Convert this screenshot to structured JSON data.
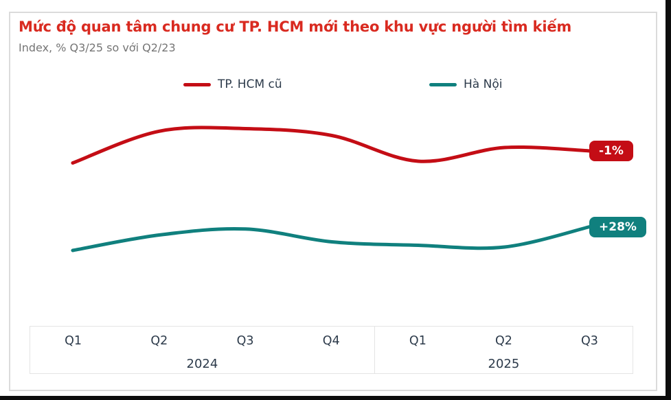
{
  "page": {
    "title": "Mức độ quan tâm chung cư TP. HCM mới theo khu vực người tìm kiếm",
    "subtitle": "Index, % Q3/25 so với Q2/23"
  },
  "legend": {
    "items": [
      {
        "label": "TP. HCM cũ",
        "color": "#c40d15"
      },
      {
        "label": "Hà Nội",
        "color": "#10807e"
      }
    ]
  },
  "chart_data": {
    "type": "line",
    "title": "Mức độ quan tâm chung cư TP. HCM mới theo khu vực người tìm kiếm",
    "subtitle": "Index, % Q3/25 so với Q2/23",
    "categories": [
      "Q1 2024",
      "Q2 2024",
      "Q3 2024",
      "Q4 2024",
      "Q1 2025",
      "Q2 2025",
      "Q3 2025"
    ],
    "x_axis": {
      "groups": [
        {
          "year": "2024",
          "quarters": [
            "Q1",
            "Q2",
            "Q3",
            "Q4"
          ]
        },
        {
          "year": "2025",
          "quarters": [
            "Q1",
            "Q2",
            "Q3"
          ]
        }
      ]
    },
    "series": [
      {
        "name": "TP. HCM cũ",
        "color": "#c40d15",
        "end_label": "-1%",
        "values": [
          -15,
          22,
          25,
          17,
          -13,
          3,
          -1
        ]
      },
      {
        "name": "Hà Nội",
        "color": "#10807e",
        "end_label": "+28%",
        "values": [
          0,
          18,
          25,
          10,
          6,
          4,
          28
        ]
      }
    ],
    "grid": false,
    "y_axis_visible": false,
    "legend_position": "top"
  }
}
